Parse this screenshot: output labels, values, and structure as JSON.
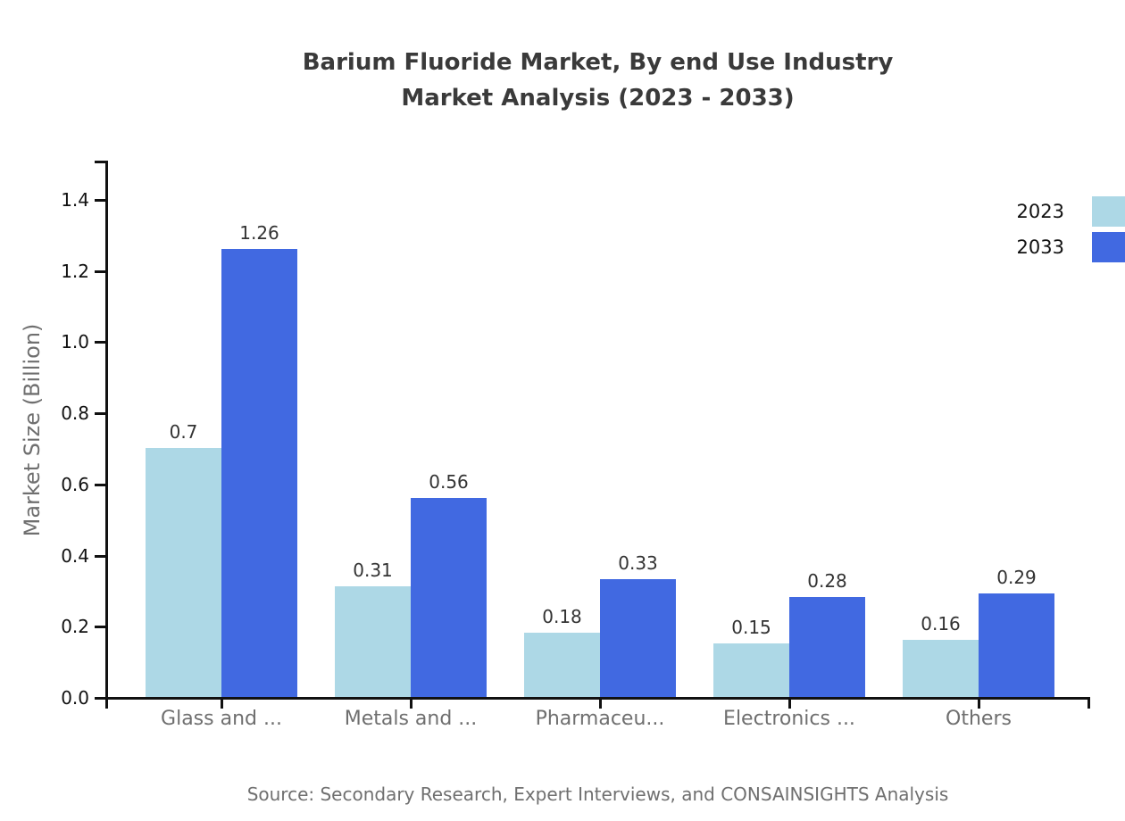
{
  "title_line1": "Barium Fluoride Market, By end Use Industry",
  "title_line2": "Market Analysis (2023 - 2033)",
  "source_note": "Source: Secondary Research, Expert Interviews, and CONSAINSIGHTS Analysis",
  "colors": {
    "series_2023": "#ADD8E6",
    "series_2033": "#4169E1",
    "axis": "#111111",
    "title_text": "#3a3a3a",
    "muted_text": "#6f6f6f",
    "value_label_text": "#333333"
  },
  "legend": {
    "items": [
      {
        "label": "2023",
        "color": "#ADD8E6"
      },
      {
        "label": "2033",
        "color": "#4169E1"
      }
    ]
  },
  "chart_data": {
    "type": "bar",
    "title": "Barium Fluoride Market, By end Use Industry Market Analysis (2023 - 2033)",
    "xlabel": "",
    "ylabel": "Market Size (Billion)",
    "categories": [
      "Glass and ...",
      "Metals and ...",
      "Pharmaceu...",
      "Electronics ...",
      "Others"
    ],
    "series": [
      {
        "name": "2023",
        "color": "#ADD8E6",
        "values": [
          0.7,
          0.31,
          0.18,
          0.15,
          0.16
        ],
        "labels": [
          "0.7",
          "0.31",
          "0.18",
          "0.15",
          "0.16"
        ]
      },
      {
        "name": "2033",
        "color": "#4169E1",
        "values": [
          1.26,
          0.56,
          0.33,
          0.28,
          0.29
        ],
        "labels": [
          "1.26",
          "0.56",
          "0.33",
          "0.28",
          "0.29"
        ]
      }
    ],
    "ylim": [
      0,
      1.51
    ],
    "yticks": [
      0,
      0.2,
      0.4,
      0.6,
      0.8,
      1.0,
      1.2,
      1.4
    ],
    "ytick_labels": [
      "0.0",
      "0.2",
      "0.4",
      "0.6",
      "0.8",
      "1.0",
      "1.2",
      "1.4"
    ],
    "grid": false,
    "legend_position": "top-right"
  }
}
